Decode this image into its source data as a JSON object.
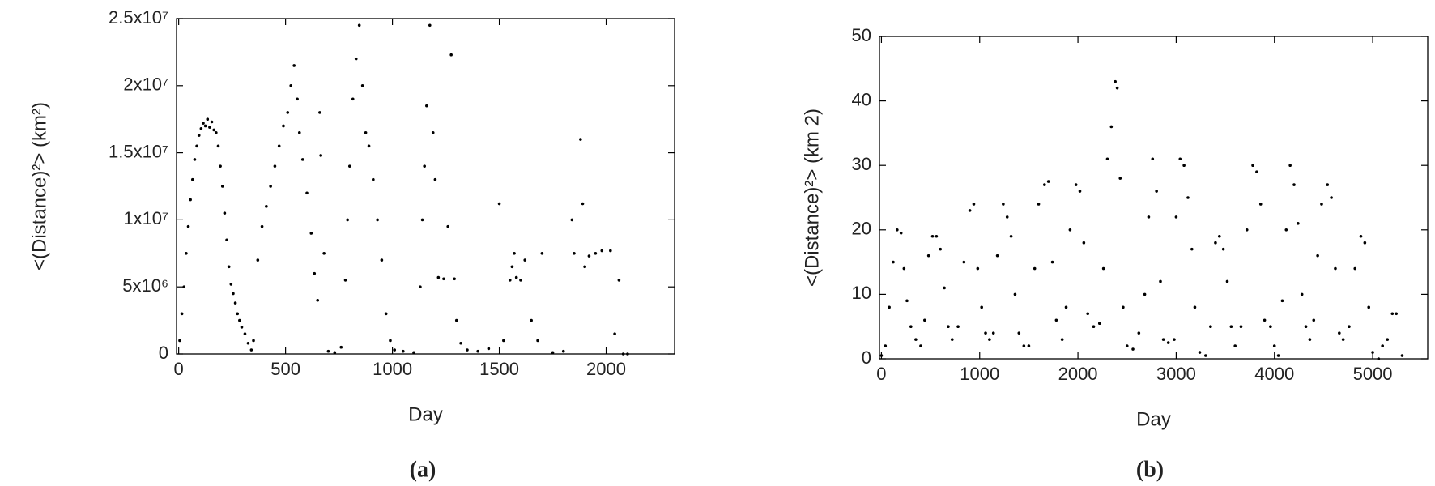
{
  "chart_data": [
    {
      "type": "scatter",
      "caption": "(a)",
      "xlabel": "Day",
      "ylabel": "<(Distance)²>  (km²)",
      "color": "#000000",
      "xlim": [
        -10,
        2320
      ],
      "xticks": [
        0,
        500,
        1000,
        1500,
        2000
      ],
      "ylim": [
        0,
        25000000
      ],
      "yticks": [
        0,
        {
          "value": 5000000,
          "label": "5x10⁶"
        },
        {
          "value": 10000000,
          "label": "1x10⁷"
        },
        {
          "value": 15000000,
          "label": "1.5x10⁷"
        },
        {
          "value": 20000000,
          "label": "2x10⁷"
        },
        {
          "value": 25000000,
          "label": "2.5x10⁷"
        }
      ],
      "x": [
        5,
        15,
        25,
        35,
        45,
        55,
        65,
        75,
        85,
        95,
        105,
        115,
        125,
        135,
        145,
        155,
        165,
        175,
        185,
        195,
        205,
        215,
        225,
        235,
        245,
        255,
        265,
        275,
        285,
        295,
        310,
        325,
        340,
        350,
        370,
        390,
        410,
        430,
        450,
        470,
        490,
        510,
        525,
        540,
        555,
        565,
        580,
        600,
        620,
        635,
        650,
        665,
        680,
        660,
        700,
        730,
        760,
        780,
        790,
        800,
        815,
        830,
        845,
        860,
        875,
        890,
        910,
        930,
        950,
        970,
        990,
        1010,
        1050,
        1100,
        1130,
        1140,
        1150,
        1160,
        1175,
        1190,
        1200,
        1215,
        1240,
        1260,
        1275,
        1290,
        1300,
        1320,
        1350,
        1400,
        1450,
        1500,
        1520,
        1550,
        1560,
        1570,
        1580,
        1600,
        1620,
        1650,
        1680,
        1700,
        1750,
        1800,
        1840,
        1850,
        1880,
        1890,
        1900,
        1920,
        1950,
        1980,
        2020,
        2040,
        2060,
        2080,
        2100
      ],
      "values": [
        1000000,
        3000000,
        5000000,
        7500000,
        9500000,
        11500000,
        13000000,
        14500000,
        15500000,
        16300000,
        16800000,
        17200000,
        17000000,
        17500000,
        16900000,
        17300000,
        16700000,
        16500000,
        15500000,
        14000000,
        12500000,
        10500000,
        8500000,
        6500000,
        5200000,
        4500000,
        3800000,
        3000000,
        2500000,
        2000000,
        1500000,
        800000,
        300000,
        1000000,
        7000000,
        9500000,
        11000000,
        12500000,
        14000000,
        15500000,
        17000000,
        18000000,
        20000000,
        21500000,
        19000000,
        16500000,
        14500000,
        12000000,
        9000000,
        6000000,
        4000000,
        14800000,
        7500000,
        18000000,
        200000,
        100000,
        500000,
        5500000,
        10000000,
        14000000,
        19000000,
        22000000,
        24500000,
        20000000,
        16500000,
        15500000,
        13000000,
        10000000,
        7000000,
        3000000,
        1000000,
        300000,
        200000,
        100000,
        5000000,
        10000000,
        14000000,
        18500000,
        24500000,
        16500000,
        13000000,
        5700000,
        5600000,
        9500000,
        22300000,
        5600000,
        2500000,
        800000,
        300000,
        200000,
        400000,
        11200000,
        1000000,
        5500000,
        6500000,
        7500000,
        5700000,
        5500000,
        7000000,
        2500000,
        1000000,
        7500000,
        100000,
        200000,
        10000000,
        7500000,
        16000000,
        11200000,
        6500000,
        7300000,
        7500000,
        7700000,
        7700000,
        1500000,
        5500000,
        0,
        0
      ]
    },
    {
      "type": "scatter",
      "caption": "(b)",
      "xlabel": "Day",
      "ylabel": "<(Distance)²> (km 2)",
      "color": "#000000",
      "xlim": [
        -20,
        5560
      ],
      "xticks": [
        0,
        1000,
        2000,
        3000,
        4000,
        5000
      ],
      "ylim": [
        0,
        50
      ],
      "yticks": [
        0,
        10,
        20,
        30,
        40,
        50
      ],
      "x": [
        0,
        40,
        80,
        120,
        160,
        200,
        230,
        260,
        300,
        350,
        400,
        440,
        480,
        520,
        560,
        600,
        640,
        680,
        720,
        780,
        840,
        900,
        940,
        980,
        1020,
        1060,
        1100,
        1140,
        1180,
        1240,
        1280,
        1320,
        1360,
        1400,
        1450,
        1500,
        1560,
        1600,
        1660,
        1700,
        1740,
        1780,
        1840,
        1880,
        1920,
        1980,
        2020,
        2060,
        2100,
        2160,
        2220,
        2260,
        2300,
        2340,
        2380,
        2400,
        2430,
        2460,
        2500,
        2560,
        2620,
        2680,
        2720,
        2760,
        2800,
        2840,
        2870,
        2920,
        2980,
        3000,
        3040,
        3080,
        3120,
        3160,
        3190,
        3240,
        3300,
        3350,
        3400,
        3440,
        3480,
        3520,
        3560,
        3600,
        3660,
        3720,
        3780,
        3820,
        3860,
        3900,
        3960,
        4000,
        4040,
        4080,
        4120,
        4160,
        4200,
        4240,
        4280,
        4320,
        4360,
        4400,
        4440,
        4480,
        4540,
        4580,
        4620,
        4660,
        4700,
        4760,
        4820,
        4880,
        4920,
        4960,
        5000,
        5060,
        5100,
        5150,
        5200,
        5240,
        5300
      ],
      "values": [
        0.5,
        2,
        8,
        15,
        20,
        19.5,
        14,
        9,
        5,
        3,
        2,
        6,
        16,
        19,
        19,
        17,
        11,
        5,
        3,
        5,
        15,
        23,
        24,
        14,
        8,
        4,
        3,
        4,
        16,
        24,
        22,
        19,
        10,
        4,
        2,
        2,
        14,
        24,
        27,
        27.5,
        15,
        6,
        3,
        8,
        20,
        27,
        26,
        18,
        7,
        5,
        5.5,
        14,
        31,
        36,
        43,
        42,
        28,
        8,
        2,
        1.5,
        4,
        10,
        22,
        31,
        26,
        12,
        3,
        2.5,
        3,
        22,
        31,
        30,
        25,
        17,
        8,
        1,
        0.5,
        5,
        18,
        19,
        17,
        12,
        5,
        2,
        5,
        20,
        30,
        29,
        24,
        6,
        5,
        2,
        0.5,
        9,
        20,
        30,
        27,
        21,
        10,
        5,
        3,
        6,
        16,
        24,
        27,
        25,
        14,
        4,
        3,
        5,
        14,
        19,
        18,
        8,
        1,
        0,
        2,
        3,
        7,
        7,
        0.5
      ]
    }
  ]
}
